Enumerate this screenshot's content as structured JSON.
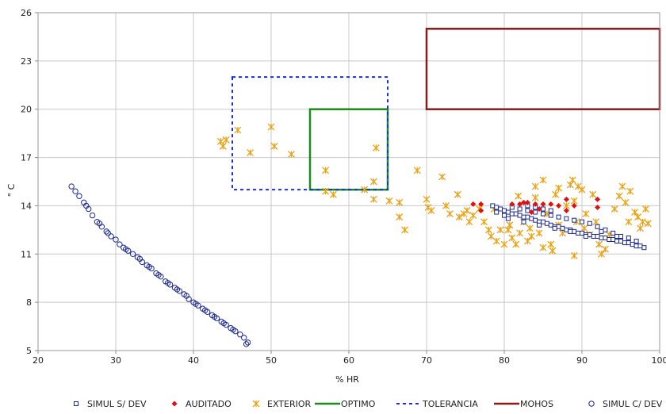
{
  "chart_data": {
    "type": "scatter",
    "title": "",
    "xlabel": "% HR",
    "ylabel": "° C",
    "xlim": [
      20,
      100
    ],
    "ylim": [
      5,
      26
    ],
    "x_ticks": [
      20,
      30,
      40,
      50,
      60,
      70,
      80,
      90,
      100
    ],
    "y_ticks": [
      5,
      8,
      11,
      14,
      17,
      20,
      23,
      26
    ],
    "grid": true,
    "legend_position": "bottom",
    "series": [
      {
        "name": "SIMUL S/ DEV",
        "marker": "square-open",
        "color": "#1b2a8c",
        "points": [
          [
            78.5,
            14.0
          ],
          [
            79.0,
            13.9
          ],
          [
            79.5,
            13.8
          ],
          [
            80.0,
            13.7
          ],
          [
            80.5,
            13.6
          ],
          [
            81.0,
            13.5
          ],
          [
            81.5,
            13.5
          ],
          [
            82.0,
            13.4
          ],
          [
            82.5,
            13.3
          ],
          [
            83.0,
            13.3
          ],
          [
            83.5,
            13.2
          ],
          [
            84.0,
            13.1
          ],
          [
            84.5,
            13.0
          ],
          [
            85.0,
            13.0
          ],
          [
            85.5,
            12.9
          ],
          [
            86.0,
            12.8
          ],
          [
            86.5,
            12.7
          ],
          [
            87.0,
            12.7
          ],
          [
            87.5,
            12.6
          ],
          [
            88.0,
            12.5
          ],
          [
            88.5,
            12.5
          ],
          [
            89.0,
            12.4
          ],
          [
            89.5,
            12.3
          ],
          [
            90.0,
            12.3
          ],
          [
            90.5,
            12.2
          ],
          [
            91.0,
            12.2
          ],
          [
            91.5,
            12.1
          ],
          [
            92.0,
            12.1
          ],
          [
            92.5,
            12.0
          ],
          [
            93.0,
            12.0
          ],
          [
            93.5,
            11.9
          ],
          [
            94.0,
            11.9
          ],
          [
            94.5,
            11.8
          ],
          [
            95.0,
            11.8
          ],
          [
            95.5,
            11.7
          ],
          [
            96.0,
            11.7
          ],
          [
            96.5,
            11.6
          ],
          [
            97.0,
            11.5
          ],
          [
            97.5,
            11.5
          ],
          [
            98.0,
            11.4
          ],
          [
            79.0,
            13.6
          ],
          [
            80.0,
            13.4
          ],
          [
            81.0,
            13.9
          ],
          [
            82.0,
            13.8
          ],
          [
            83.0,
            13.7
          ],
          [
            84.0,
            13.6
          ],
          [
            85.0,
            13.5
          ],
          [
            86.0,
            13.4
          ],
          [
            87.0,
            13.3
          ],
          [
            88.0,
            13.2
          ],
          [
            89.0,
            13.1
          ],
          [
            90.0,
            13.0
          ],
          [
            91.0,
            12.9
          ],
          [
            92.0,
            12.7
          ],
          [
            93.0,
            12.5
          ],
          [
            94.0,
            12.3
          ],
          [
            95.0,
            12.1
          ],
          [
            96.0,
            12.0
          ],
          [
            97.0,
            11.8
          ],
          [
            80.5,
            13.2
          ],
          [
            82.5,
            13.0
          ],
          [
            84.5,
            12.8
          ],
          [
            86.5,
            12.6
          ],
          [
            88.5,
            12.4
          ],
          [
            90.5,
            12.1
          ],
          [
            92.5,
            12.4
          ],
          [
            94.5,
            12.1
          ],
          [
            83.0,
            14.0
          ],
          [
            84.0,
            13.9
          ],
          [
            85.0,
            13.8
          ],
          [
            86.0,
            13.7
          ]
        ]
      },
      {
        "name": "AUDITADO",
        "marker": "diamond-filled",
        "color": "#e01010",
        "points": [
          [
            76.0,
            14.1
          ],
          [
            77.0,
            14.1
          ],
          [
            77.0,
            13.7
          ],
          [
            81.0,
            14.1
          ],
          [
            82.0,
            14.1
          ],
          [
            82.5,
            14.2
          ],
          [
            83.0,
            14.2
          ],
          [
            84.0,
            14.1
          ],
          [
            85.0,
            14.1
          ],
          [
            86.0,
            14.1
          ],
          [
            87.0,
            14.0
          ],
          [
            88.0,
            14.4
          ],
          [
            89.0,
            14.0
          ],
          [
            92.0,
            14.4
          ],
          [
            92.0,
            13.9
          ],
          [
            83.5,
            13.6
          ],
          [
            84.5,
            13.8
          ],
          [
            88.0,
            13.7
          ]
        ]
      },
      {
        "name": "EXTERIOR",
        "marker": "asterisk",
        "color": "#e8a317",
        "points": [
          [
            43.5,
            18.0
          ],
          [
            43.8,
            17.7
          ],
          [
            44.2,
            18.1
          ],
          [
            45.7,
            18.7
          ],
          [
            47.3,
            17.3
          ],
          [
            50.0,
            18.9
          ],
          [
            50.4,
            17.7
          ],
          [
            52.6,
            17.2
          ],
          [
            57.0,
            16.2
          ],
          [
            57.0,
            14.9
          ],
          [
            58.0,
            14.7
          ],
          [
            62.0,
            15.0
          ],
          [
            63.2,
            15.5
          ],
          [
            63.5,
            17.6
          ],
          [
            63.2,
            14.4
          ],
          [
            65.2,
            14.3
          ],
          [
            66.5,
            14.2
          ],
          [
            66.5,
            13.3
          ],
          [
            67.2,
            12.5
          ],
          [
            68.8,
            16.2
          ],
          [
            70.0,
            14.4
          ],
          [
            70.2,
            13.9
          ],
          [
            70.6,
            13.7
          ],
          [
            72.0,
            15.8
          ],
          [
            72.5,
            14.0
          ],
          [
            73.0,
            13.5
          ],
          [
            74.0,
            14.7
          ],
          [
            74.2,
            13.3
          ],
          [
            74.8,
            13.5
          ],
          [
            75.5,
            13.0
          ],
          [
            76.0,
            13.4
          ],
          [
            76.8,
            13.8
          ],
          [
            77.4,
            13.0
          ],
          [
            78.0,
            12.5
          ],
          [
            78.3,
            12.1
          ],
          [
            79.0,
            11.8
          ],
          [
            79.5,
            12.5
          ],
          [
            80.0,
            11.6
          ],
          [
            80.7,
            12.8
          ],
          [
            81.0,
            12.0
          ],
          [
            81.5,
            11.6
          ],
          [
            81.8,
            14.6
          ],
          [
            82.0,
            12.3
          ],
          [
            82.5,
            13.0
          ],
          [
            83.0,
            11.8
          ],
          [
            83.3,
            12.6
          ],
          [
            84.0,
            15.2
          ],
          [
            84.0,
            14.5
          ],
          [
            84.5,
            12.3
          ],
          [
            85.0,
            15.6
          ],
          [
            85.5,
            13.5
          ],
          [
            86.0,
            11.6
          ],
          [
            86.2,
            11.2
          ],
          [
            86.6,
            14.7
          ],
          [
            87.0,
            15.1
          ],
          [
            87.5,
            12.3
          ],
          [
            88.0,
            14.0
          ],
          [
            88.5,
            15.3
          ],
          [
            88.8,
            15.6
          ],
          [
            89.0,
            14.3
          ],
          [
            89.3,
            13.0
          ],
          [
            89.5,
            15.2
          ],
          [
            90.0,
            15.0
          ],
          [
            90.3,
            12.6
          ],
          [
            90.5,
            13.5
          ],
          [
            91.0,
            12.2
          ],
          [
            91.4,
            14.7
          ],
          [
            91.8,
            13.0
          ],
          [
            92.2,
            11.6
          ],
          [
            92.5,
            11.0
          ],
          [
            93.0,
            11.3
          ],
          [
            93.5,
            12.2
          ],
          [
            94.2,
            13.8
          ],
          [
            94.8,
            14.6
          ],
          [
            95.2,
            15.2
          ],
          [
            95.6,
            14.2
          ],
          [
            96.0,
            13.0
          ],
          [
            96.2,
            14.9
          ],
          [
            96.8,
            13.6
          ],
          [
            97.2,
            13.3
          ],
          [
            97.5,
            12.6
          ],
          [
            97.8,
            13.0
          ],
          [
            98.2,
            13.8
          ],
          [
            98.5,
            12.9
          ],
          [
            89.0,
            10.9
          ],
          [
            85.0,
            11.4
          ],
          [
            83.5,
            12.1
          ],
          [
            87.0,
            12.8
          ],
          [
            80.5,
            12.5
          ],
          [
            78.7,
            13.8
          ],
          [
            75.2,
            13.7
          ]
        ]
      },
      {
        "name": "OPTIMO",
        "type": "rectangle",
        "style": "solid",
        "color": "#1a8c1a",
        "x_range": [
          55,
          65
        ],
        "y_range": [
          15,
          20
        ]
      },
      {
        "name": "TOLERANCIA",
        "type": "rectangle",
        "style": "dashed",
        "color": "#1f2fd6",
        "x_range": [
          45,
          65
        ],
        "y_range": [
          15,
          22
        ]
      },
      {
        "name": "MOHOS",
        "type": "rectangle",
        "style": "solid",
        "color": "#8b1a1a",
        "x_range": [
          70,
          100
        ],
        "y_range": [
          20,
          25
        ]
      },
      {
        "name": "SIMUL C/ DEV",
        "marker": "circle-open",
        "color": "#1b2a8c",
        "points": [
          [
            24.3,
            15.2
          ],
          [
            24.8,
            14.9
          ],
          [
            25.3,
            14.6
          ],
          [
            25.9,
            14.2
          ],
          [
            26.5,
            13.8
          ],
          [
            27.0,
            13.4
          ],
          [
            27.6,
            13.0
          ],
          [
            28.2,
            12.7
          ],
          [
            28.8,
            12.4
          ],
          [
            29.4,
            12.1
          ],
          [
            30.0,
            11.9
          ],
          [
            30.5,
            11.6
          ],
          [
            31.0,
            11.4
          ],
          [
            31.6,
            11.2
          ],
          [
            32.2,
            11.0
          ],
          [
            32.8,
            10.8
          ],
          [
            33.4,
            10.5
          ],
          [
            34.0,
            10.3
          ],
          [
            34.6,
            10.1
          ],
          [
            35.2,
            9.8
          ],
          [
            35.8,
            9.6
          ],
          [
            36.4,
            9.3
          ],
          [
            37.0,
            9.1
          ],
          [
            37.6,
            8.9
          ],
          [
            38.2,
            8.7
          ],
          [
            38.8,
            8.5
          ],
          [
            39.4,
            8.2
          ],
          [
            40.0,
            8.0
          ],
          [
            40.6,
            7.8
          ],
          [
            41.2,
            7.6
          ],
          [
            41.8,
            7.4
          ],
          [
            42.4,
            7.2
          ],
          [
            43.0,
            7.0
          ],
          [
            43.6,
            6.8
          ],
          [
            44.2,
            6.6
          ],
          [
            44.8,
            6.4
          ],
          [
            45.4,
            6.2
          ],
          [
            46.0,
            6.0
          ],
          [
            46.5,
            5.8
          ],
          [
            47.0,
            5.5
          ],
          [
            29.0,
            12.3
          ],
          [
            31.3,
            11.3
          ],
          [
            33.1,
            10.7
          ],
          [
            34.3,
            10.2
          ],
          [
            35.5,
            9.7
          ],
          [
            36.7,
            9.2
          ],
          [
            37.9,
            8.8
          ],
          [
            39.1,
            8.4
          ],
          [
            40.3,
            7.9
          ],
          [
            41.5,
            7.5
          ],
          [
            42.7,
            7.1
          ],
          [
            43.9,
            6.7
          ],
          [
            45.1,
            6.3
          ],
          [
            46.8,
            5.4
          ],
          [
            26.2,
            14.0
          ],
          [
            27.9,
            12.9
          ]
        ]
      }
    ]
  }
}
